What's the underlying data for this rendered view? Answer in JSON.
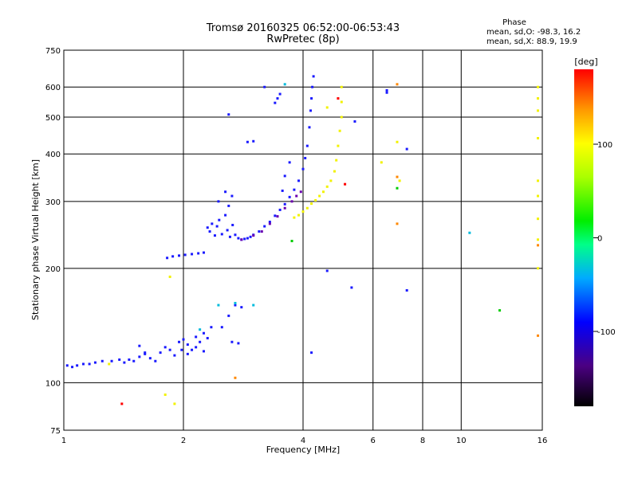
{
  "chart_data": {
    "type": "scatter",
    "title": "Tromsø 20160325 06:52:00-06:53:43",
    "subtitle": "RwPretec (8p)",
    "xlabel": "Frequency [MHz]",
    "ylabel": "Stationary phase Virtual Height [km]",
    "xscale": "log",
    "yscale": "log",
    "xlim": [
      1,
      16
    ],
    "ylim": [
      75,
      750
    ],
    "x_ticks": [
      "1",
      "2",
      "4",
      "6",
      "8",
      "10",
      "16"
    ],
    "x_tick_values": [
      1,
      2,
      4,
      6,
      8,
      10,
      16
    ],
    "y_ticks": [
      "75",
      "100",
      "200",
      "300",
      "400",
      "500",
      "600",
      "750"
    ],
    "y_tick_values": [
      75,
      100,
      200,
      300,
      400,
      500,
      600,
      750
    ],
    "grid": true,
    "stats_box": {
      "header": "Phase",
      "line_o": "mean, sd,O: -98.3, 16.2",
      "line_x": "mean, sd,X:  88.9, 19.9"
    },
    "colorbar": {
      "label": "[deg]",
      "range": [
        -180,
        180
      ],
      "ticks": [
        "100",
        "0",
        "-100"
      ],
      "tick_values": [
        100,
        0,
        -100
      ]
    },
    "series": [
      {
        "mode": "O",
        "phase_deg": -100,
        "color": "#1a1aff",
        "points": [
          [
            1.02,
            111
          ],
          [
            1.05,
            110
          ],
          [
            1.08,
            111
          ],
          [
            1.12,
            112
          ],
          [
            1.16,
            112
          ],
          [
            1.2,
            113
          ],
          [
            1.25,
            114
          ],
          [
            1.32,
            114
          ],
          [
            1.38,
            115
          ],
          [
            1.42,
            113
          ],
          [
            1.46,
            115
          ],
          [
            1.5,
            114
          ],
          [
            1.55,
            117
          ],
          [
            1.6,
            119
          ],
          [
            1.65,
            116
          ],
          [
            1.7,
            114
          ],
          [
            1.75,
            120
          ],
          [
            1.8,
            124
          ],
          [
            1.85,
            122
          ],
          [
            1.9,
            118
          ],
          [
            1.95,
            128
          ],
          [
            2.0,
            130
          ],
          [
            2.05,
            126
          ],
          [
            2.1,
            122
          ],
          [
            2.15,
            132
          ],
          [
            2.2,
            128
          ],
          [
            2.25,
            135
          ],
          [
            2.3,
            131
          ],
          [
            2.35,
            140
          ],
          [
            1.98,
            122
          ],
          [
            2.05,
            119
          ],
          [
            2.15,
            124
          ],
          [
            2.25,
            121
          ],
          [
            1.82,
            213
          ],
          [
            1.88,
            215
          ],
          [
            1.95,
            216
          ],
          [
            2.02,
            217
          ],
          [
            2.1,
            218
          ],
          [
            2.18,
            219
          ],
          [
            2.25,
            220
          ],
          [
            2.3,
            256
          ],
          [
            2.33,
            250
          ],
          [
            2.36,
            262
          ],
          [
            2.4,
            244
          ],
          [
            2.43,
            258
          ],
          [
            2.46,
            268
          ],
          [
            2.5,
            246
          ],
          [
            2.55,
            276
          ],
          [
            2.58,
            252
          ],
          [
            2.62,
            242
          ],
          [
            2.66,
            260
          ],
          [
            2.7,
            245
          ],
          [
            2.75,
            240
          ],
          [
            2.8,
            238
          ],
          [
            2.85,
            239
          ],
          [
            2.9,
            240
          ],
          [
            2.95,
            242
          ],
          [
            2.45,
            300
          ],
          [
            2.55,
            318
          ],
          [
            2.6,
            292
          ],
          [
            2.65,
            310
          ],
          [
            3.0,
            245
          ],
          [
            3.1,
            250
          ],
          [
            3.2,
            258
          ],
          [
            3.3,
            265
          ],
          [
            3.4,
            275
          ],
          [
            3.5,
            285
          ],
          [
            3.6,
            295
          ],
          [
            3.7,
            308
          ],
          [
            3.8,
            322
          ],
          [
            3.9,
            340
          ],
          [
            4.0,
            365
          ],
          [
            4.05,
            390
          ],
          [
            4.1,
            420
          ],
          [
            4.15,
            470
          ],
          [
            4.18,
            520
          ],
          [
            4.2,
            560
          ],
          [
            4.22,
            600
          ],
          [
            4.25,
            640
          ],
          [
            3.55,
            320
          ],
          [
            3.6,
            350
          ],
          [
            3.7,
            380
          ],
          [
            3.4,
            545
          ],
          [
            3.45,
            560
          ],
          [
            3.5,
            575
          ],
          [
            3.2,
            600
          ],
          [
            2.9,
            430
          ],
          [
            3.0,
            432
          ],
          [
            2.6,
            508
          ],
          [
            2.6,
            150
          ],
          [
            2.7,
            160
          ],
          [
            2.8,
            158
          ],
          [
            2.5,
            140
          ],
          [
            2.65,
            128
          ],
          [
            2.75,
            127
          ],
          [
            4.6,
            197
          ],
          [
            5.3,
            178
          ],
          [
            4.2,
            120
          ],
          [
            6.5,
            588
          ],
          [
            6.5,
            580
          ],
          [
            7.3,
            412
          ],
          [
            5.4,
            487
          ],
          [
            7.3,
            175
          ],
          [
            1.6,
            120
          ],
          [
            1.55,
            125
          ]
        ]
      },
      {
        "mode": "O",
        "phase_deg": -150,
        "color": "#6a00b0",
        "points": [
          [
            2.8,
            238
          ],
          [
            3.0,
            244
          ],
          [
            3.15,
            250
          ],
          [
            3.3,
            262
          ],
          [
            3.45,
            274
          ],
          [
            3.6,
            288
          ],
          [
            3.75,
            300
          ],
          [
            3.85,
            310
          ],
          [
            3.95,
            318
          ]
        ]
      },
      {
        "mode": "X",
        "phase_deg": 100,
        "color": "#f2f200",
        "points": [
          [
            3.8,
            272
          ],
          [
            3.9,
            276
          ],
          [
            4.0,
            282
          ],
          [
            4.1,
            288
          ],
          [
            4.2,
            296
          ],
          [
            4.3,
            302
          ],
          [
            4.4,
            310
          ],
          [
            4.5,
            318
          ],
          [
            4.6,
            328
          ],
          [
            4.7,
            340
          ],
          [
            4.8,
            360
          ],
          [
            4.85,
            385
          ],
          [
            4.9,
            420
          ],
          [
            4.95,
            460
          ],
          [
            5.0,
            500
          ],
          [
            5.0,
            548
          ],
          [
            5.0,
            600
          ],
          [
            4.6,
            530
          ],
          [
            1.3,
            112
          ],
          [
            1.85,
            190
          ],
          [
            6.3,
            380
          ],
          [
            6.9,
            430
          ],
          [
            7.0,
            340
          ],
          [
            15.6,
            600
          ],
          [
            15.6,
            560
          ],
          [
            15.6,
            520
          ],
          [
            15.6,
            440
          ],
          [
            15.6,
            340
          ],
          [
            15.6,
            310
          ],
          [
            15.6,
            270
          ],
          [
            15.6,
            238
          ],
          [
            15.6,
            200
          ],
          [
            1.8,
            93
          ],
          [
            1.9,
            88
          ]
        ]
      },
      {
        "mode": "X",
        "phase_deg": 140,
        "color": "#ff8800",
        "points": [
          [
            6.9,
            610
          ],
          [
            6.9,
            262
          ],
          [
            2.7,
            103
          ],
          [
            6.9,
            348
          ],
          [
            15.6,
            133
          ],
          [
            15.6,
            230
          ]
        ]
      },
      {
        "mode": "X",
        "phase_deg": 170,
        "color": "#ff0000",
        "points": [
          [
            5.1,
            333
          ],
          [
            1.4,
            88
          ],
          [
            4.9,
            560
          ]
        ]
      },
      {
        "mode": "X",
        "phase_deg": 10,
        "color": "#00cc00",
        "points": [
          [
            3.75,
            236
          ],
          [
            12.5,
            155
          ],
          [
            6.9,
            325
          ]
        ]
      },
      {
        "mode": "X",
        "phase_deg": -40,
        "color": "#00bbdd",
        "points": [
          [
            2.45,
            160
          ],
          [
            2.7,
            162
          ],
          [
            3.0,
            160
          ],
          [
            10.5,
            248
          ],
          [
            3.6,
            610
          ],
          [
            2.2,
            138
          ]
        ]
      }
    ]
  }
}
